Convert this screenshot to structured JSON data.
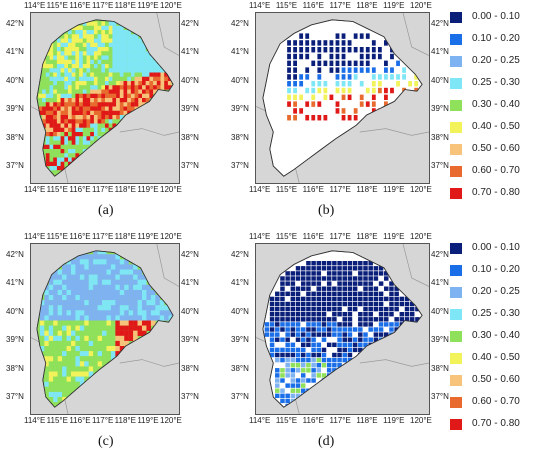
{
  "panels": [
    {
      "id": "a",
      "caption": "(a)"
    },
    {
      "id": "b",
      "caption": "(b)"
    },
    {
      "id": "c",
      "caption": "(c)"
    },
    {
      "id": "d",
      "caption": "(d)"
    }
  ],
  "lon_ticks": [
    "114°E",
    "115°E",
    "116°E",
    "117°E",
    "118°E",
    "119°E",
    "120°E"
  ],
  "lat_ticks": [
    "42°N",
    "41°N",
    "40°N",
    "39°N",
    "38°N",
    "37°N"
  ],
  "legend": [
    {
      "label": "0.00 - 0.10",
      "color": "#0a1f7a"
    },
    {
      "label": "0.10 - 0.20",
      "color": "#1a6ee8"
    },
    {
      "label": "0.20 - 0.25",
      "color": "#7fb2f0"
    },
    {
      "label": "0.25 - 0.30",
      "color": "#7fe6f5"
    },
    {
      "label": "0.30 - 0.40",
      "color": "#8fe05a"
    },
    {
      "label": "0.40 - 0.50",
      "color": "#f2f25a"
    },
    {
      "label": "0.50 - 0.60",
      "color": "#f7c27a"
    },
    {
      "label": "0.60 - 0.70",
      "color": "#e86a2e"
    },
    {
      "label": "0.70 - 0.80",
      "color": "#e01818"
    }
  ]
}
